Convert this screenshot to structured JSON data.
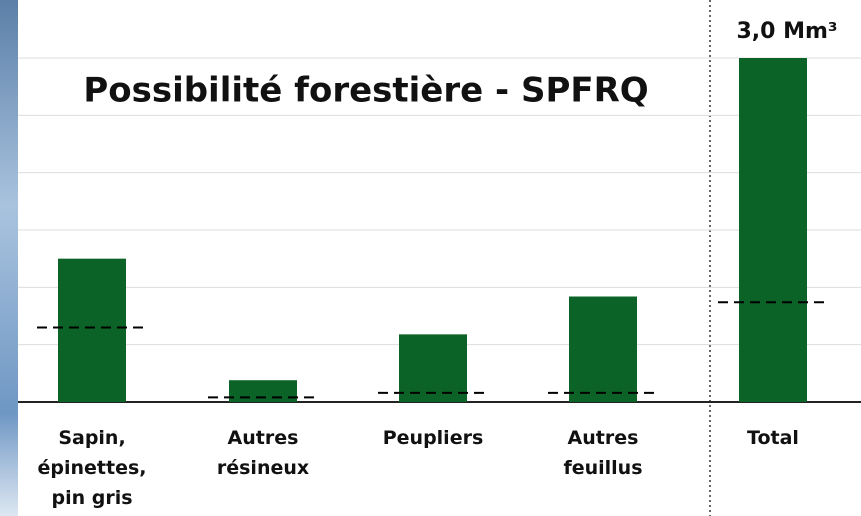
{
  "chart_data": {
    "type": "bar",
    "title": "Possibilité forestière - SPFRQ",
    "categories": [
      "Sapin,\népinettes,\npin gris",
      "Autres\nrésineux",
      "Peupliers",
      "Autres\nfeuillus",
      "Total"
    ],
    "series": [
      {
        "color": "#0b6327",
        "values": [
          1.25,
          0.19,
          0.59,
          0.92,
          3.0
        ],
        "value_labels": [
          null,
          null,
          null,
          null,
          "3,0 Mm³"
        ]
      },
      {
        "color": "#000000",
        "style": "dashed",
        "values": [
          0.65,
          0.04,
          0.08,
          0.08,
          0.87
        ]
      }
    ],
    "ylim": [
      0,
      3.0
    ],
    "yticks": [
      0,
      0.5,
      1,
      1.5,
      2,
      2.5,
      3
    ],
    "grid": true,
    "tick_labels": false
  }
}
